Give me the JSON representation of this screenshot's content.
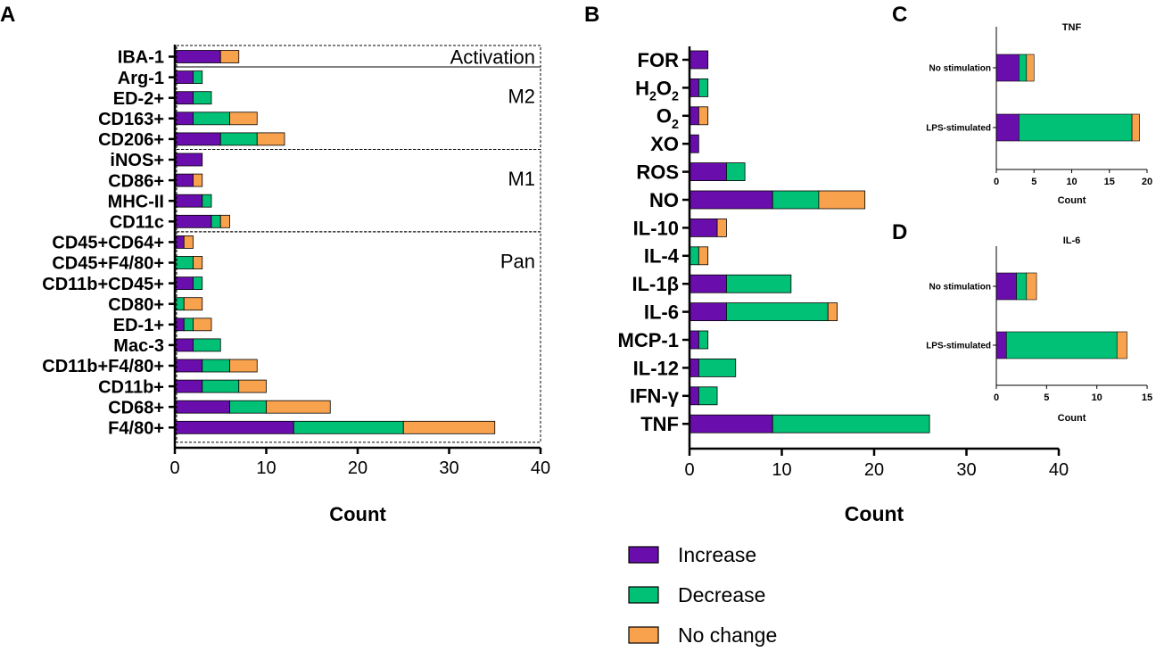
{
  "colors": {
    "increase": "#6a0dad",
    "decrease": "#00c176",
    "no_change": "#f9a24e",
    "axis": "#000000"
  },
  "legend": [
    {
      "key": "increase",
      "label": "Increase"
    },
    {
      "key": "decrease",
      "label": "Decrease"
    },
    {
      "key": "no_change",
      "label": "No change"
    }
  ],
  "chart_data": [
    {
      "panel": "A",
      "type": "bar",
      "orientation": "horizontal",
      "stacked": true,
      "xlabel": "Count",
      "xlim": [
        0,
        40
      ],
      "xticks": [
        0,
        10,
        20,
        30,
        40
      ],
      "categories": [
        "IBA-1",
        "Arg-1",
        "ED-2+",
        "CD163+",
        "CD206+",
        "iNOS+",
        "CD86+",
        "MHC-II",
        "CD11c",
        "CD45+CD64+",
        "CD45+F4/80+",
        "CD11b+CD45+",
        "CD80+",
        "ED-1+",
        "Mac-3",
        "CD11b+F4/80+",
        "CD11b+",
        "CD68+",
        "F4/80+"
      ],
      "series": [
        {
          "name": "Increase",
          "key": "increase",
          "values": [
            5,
            2,
            2,
            2,
            5,
            3,
            2,
            3,
            4,
            1,
            0,
            2,
            0,
            1,
            2,
            3,
            3,
            6,
            13
          ]
        },
        {
          "name": "Decrease",
          "key": "decrease",
          "values": [
            0,
            1,
            2,
            4,
            4,
            0,
            0,
            1,
            1,
            0,
            2,
            1,
            1,
            1,
            3,
            3,
            4,
            4,
            12
          ]
        },
        {
          "name": "No change",
          "key": "no_change",
          "values": [
            2,
            0,
            0,
            3,
            3,
            0,
            1,
            0,
            1,
            1,
            1,
            0,
            2,
            2,
            0,
            3,
            3,
            7,
            10
          ]
        }
      ],
      "groups": [
        {
          "label": "Activation",
          "start": 0,
          "end": 0
        },
        {
          "label": "M2",
          "start": 1,
          "end": 4
        },
        {
          "label": "M1",
          "start": 5,
          "end": 8
        },
        {
          "label": "Pan",
          "start": 9,
          "end": 18
        }
      ]
    },
    {
      "panel": "B",
      "type": "bar",
      "orientation": "horizontal",
      "stacked": true,
      "xlabel": "Count",
      "xlim": [
        0,
        40
      ],
      "xticks": [
        0,
        10,
        20,
        30,
        40
      ],
      "categories": [
        {
          "main": "FOR"
        },
        {
          "main": "H",
          "sub": "2",
          "main2": "O",
          "sub2": "2"
        },
        {
          "main": "O",
          "sub": "2"
        },
        {
          "main": "XO"
        },
        {
          "main": "ROS"
        },
        {
          "main": "NO"
        },
        {
          "main": "IL-10"
        },
        {
          "main": "IL-4"
        },
        {
          "main": "IL-1β"
        },
        {
          "main": "IL-6"
        },
        {
          "main": "MCP-1"
        },
        {
          "main": "IL-12"
        },
        {
          "main": "IFN-γ"
        },
        {
          "main": "TNF"
        }
      ],
      "series": [
        {
          "name": "Increase",
          "key": "increase",
          "values": [
            2,
            1,
            1,
            1,
            4,
            9,
            3,
            0,
            4,
            4,
            1,
            1,
            1,
            9
          ]
        },
        {
          "name": "Decrease",
          "key": "decrease",
          "values": [
            0,
            1,
            0,
            0,
            2,
            5,
            0,
            1,
            7,
            11,
            1,
            4,
            2,
            17
          ]
        },
        {
          "name": "No change",
          "key": "no_change",
          "values": [
            0,
            0,
            1,
            0,
            0,
            5,
            1,
            1,
            0,
            1,
            0,
            0,
            0,
            0
          ]
        }
      ]
    },
    {
      "panel": "C",
      "type": "bar",
      "orientation": "horizontal",
      "stacked": true,
      "title": "TNF",
      "xlabel": "Count",
      "xlim": [
        0,
        20
      ],
      "xticks": [
        0,
        5,
        10,
        15,
        20
      ],
      "categories": [
        "No stimulation",
        "LPS-stimulated"
      ],
      "series": [
        {
          "name": "Increase",
          "key": "increase",
          "values": [
            3,
            3
          ]
        },
        {
          "name": "Decrease",
          "key": "decrease",
          "values": [
            1,
            15
          ]
        },
        {
          "name": "No change",
          "key": "no_change",
          "values": [
            1,
            1
          ]
        }
      ]
    },
    {
      "panel": "D",
      "type": "bar",
      "orientation": "horizontal",
      "stacked": true,
      "title": "IL-6",
      "xlabel": "Count",
      "xlim": [
        0,
        15
      ],
      "xticks": [
        0,
        5,
        10,
        15
      ],
      "categories": [
        "No stimulation",
        "LPS-stimulated"
      ],
      "series": [
        {
          "name": "Increase",
          "key": "increase",
          "values": [
            2,
            1
          ]
        },
        {
          "name": "Decrease",
          "key": "decrease",
          "values": [
            1,
            11
          ]
        },
        {
          "name": "No change",
          "key": "no_change",
          "values": [
            1,
            1
          ]
        }
      ]
    }
  ]
}
